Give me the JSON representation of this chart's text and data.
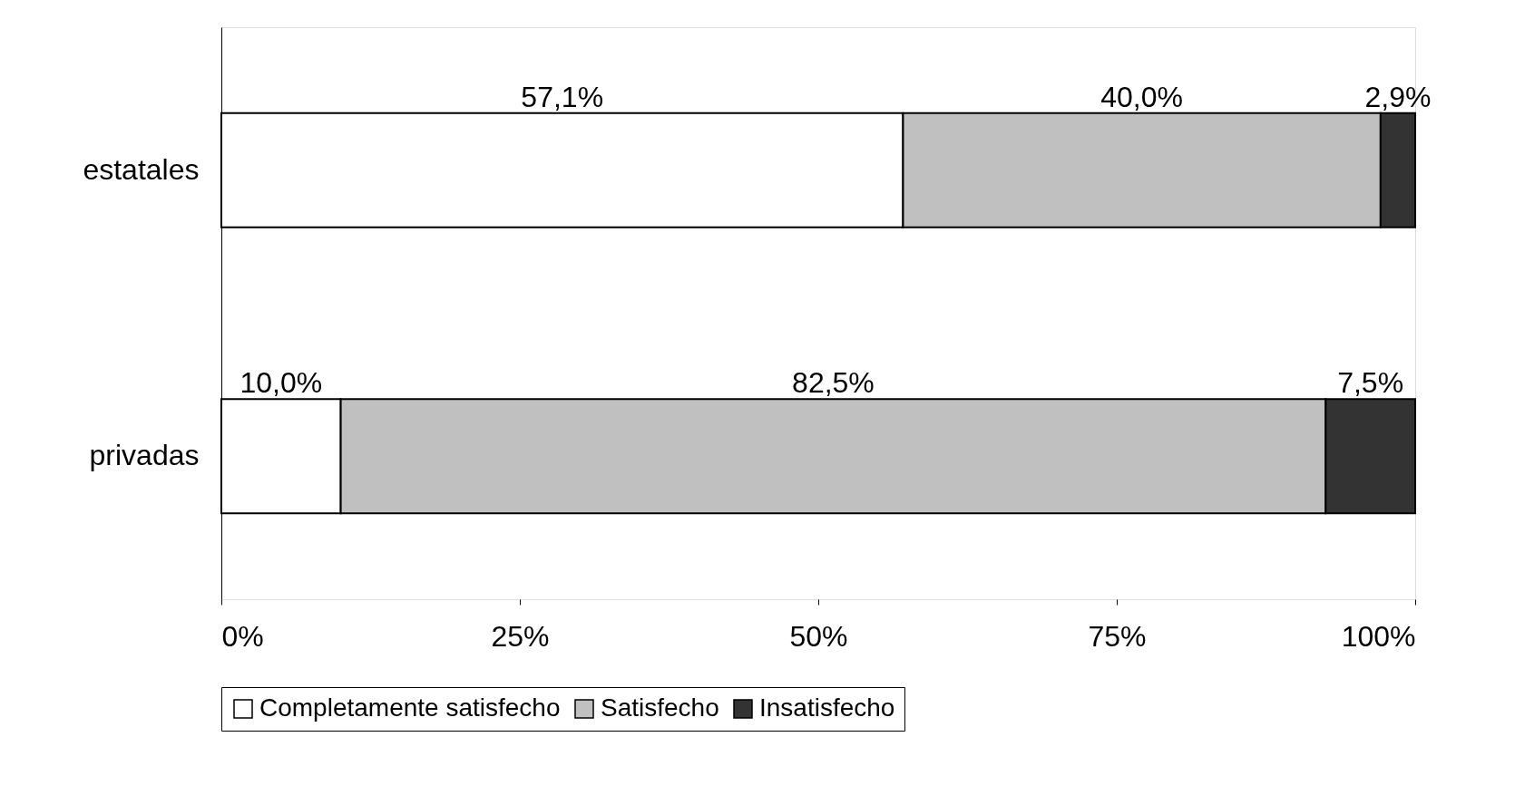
{
  "chart_data": {
    "type": "bar",
    "orientation": "horizontal",
    "stacked": true,
    "categories": [
      "estatales",
      "privadas"
    ],
    "series": [
      {
        "name": "Completamente satisfecho",
        "color": "#ffffff",
        "values": [
          57.1,
          10.0
        ],
        "value_labels": [
          "57,1%",
          "10,0%"
        ]
      },
      {
        "name": "Satisfecho",
        "color": "#c0c0c0",
        "values": [
          40.0,
          82.5
        ],
        "value_labels": [
          "40,0%",
          "82,5%"
        ]
      },
      {
        "name": "Insatisfecho",
        "color": "#333333",
        "values": [
          2.9,
          7.5
        ],
        "value_labels": [
          "2,9%",
          "7,5%"
        ]
      }
    ],
    "xlim": [
      0,
      100
    ],
    "xticks": [
      {
        "value": 0,
        "label": "0%"
      },
      {
        "value": 25,
        "label": "25%"
      },
      {
        "value": 50,
        "label": "50%"
      },
      {
        "value": 75,
        "label": "75%"
      },
      {
        "value": 100,
        "label": "100%"
      }
    ],
    "grid": false,
    "legend": "bottom"
  }
}
